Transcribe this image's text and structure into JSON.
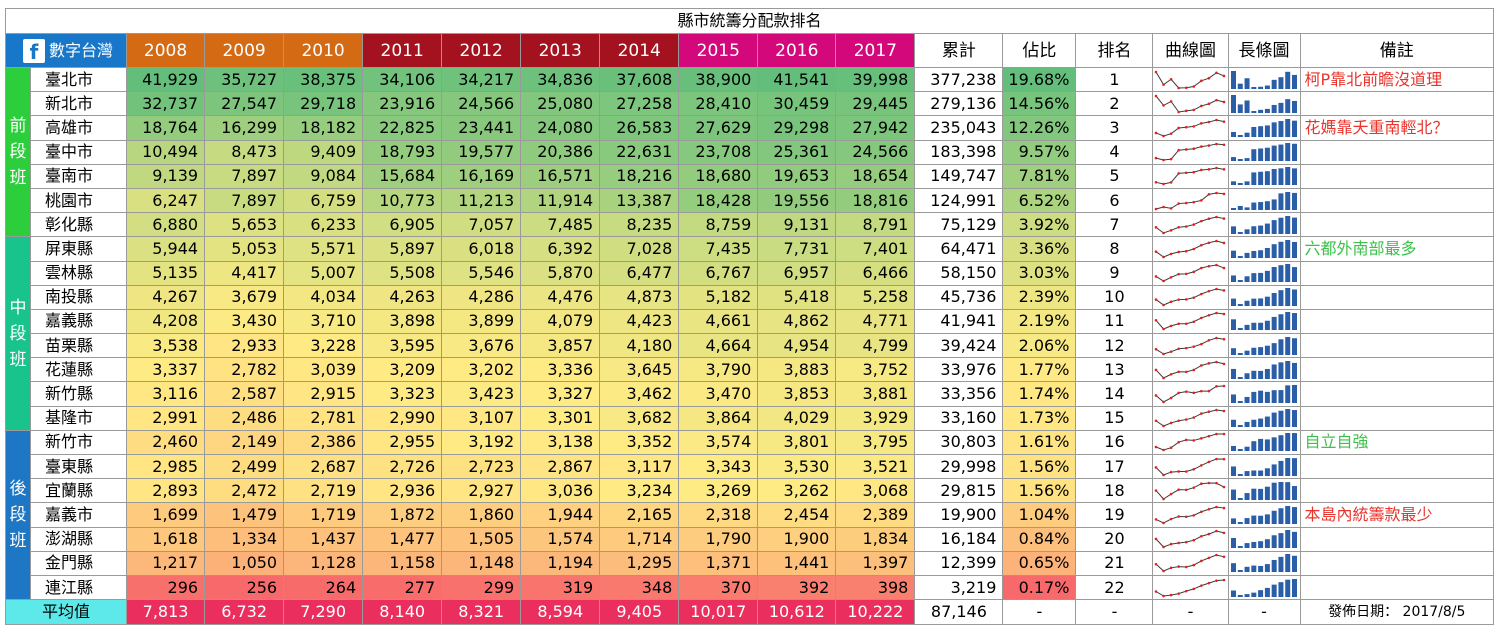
{
  "title": "縣市統籌分配款排名",
  "brand": {
    "icon": "facebook-icon",
    "glyph": "f",
    "label": "數字台灣"
  },
  "headers": {
    "years": [
      "2008",
      "2009",
      "2010",
      "2011",
      "2012",
      "2013",
      "2014",
      "2015",
      "2016",
      "2017"
    ],
    "total": "累計",
    "share": "佔比",
    "rank": "排名",
    "line": "曲線圖",
    "bar": "長條圖",
    "note": "備註"
  },
  "groups": [
    {
      "label": "前\n段\n班",
      "color": "#2ccf3b",
      "rows": 7
    },
    {
      "label": "中\n段\n班",
      "color": "#19c48c",
      "rows": 8
    },
    {
      "label": "後\n段\n班",
      "color": "#1d77c4",
      "rows": 7
    }
  ],
  "rows": [
    {
      "city": "臺北市",
      "values": [
        "41,929",
        "35,727",
        "38,375",
        "34,106",
        "34,217",
        "34,836",
        "37,608",
        "38,900",
        "41,541",
        "39,998"
      ],
      "total": "377,238",
      "share": "19.68%",
      "rank": "1",
      "note": "柯P靠北前瞻沒道理",
      "note_color": "#e8342c",
      "raw": [
        41929,
        35727,
        38375,
        34106,
        34217,
        34836,
        37608,
        38900,
        41541,
        39998
      ]
    },
    {
      "city": "新北市",
      "values": [
        "32,737",
        "27,547",
        "29,718",
        "23,916",
        "24,566",
        "25,080",
        "27,258",
        "28,410",
        "30,459",
        "29,445"
      ],
      "total": "279,136",
      "share": "14.56%",
      "rank": "2",
      "note": "",
      "note_color": "",
      "raw": [
        32737,
        27547,
        29718,
        23916,
        24566,
        25080,
        27258,
        28410,
        30459,
        29445
      ]
    },
    {
      "city": "高雄市",
      "values": [
        "18,764",
        "16,299",
        "18,182",
        "22,825",
        "23,441",
        "24,080",
        "26,583",
        "27,629",
        "29,298",
        "27,942"
      ],
      "total": "235,043",
      "share": "12.26%",
      "rank": "3",
      "note": "花媽靠夭重南輕北？",
      "note_color": "#e8342c",
      "raw": [
        18764,
        16299,
        18182,
        22825,
        23441,
        24080,
        26583,
        27629,
        29298,
        27942
      ]
    },
    {
      "city": "臺中市",
      "values": [
        "10,494",
        "8,473",
        "9,409",
        "18,793",
        "19,577",
        "20,386",
        "22,631",
        "23,708",
        "25,361",
        "24,566"
      ],
      "total": "183,398",
      "share": "9.57%",
      "rank": "4",
      "note": "",
      "note_color": "",
      "raw": [
        10494,
        8473,
        9409,
        18793,
        19577,
        20386,
        22631,
        23708,
        25361,
        24566
      ]
    },
    {
      "city": "臺南市",
      "values": [
        "9,139",
        "7,897",
        "9,084",
        "15,684",
        "16,169",
        "16,571",
        "18,216",
        "18,680",
        "19,653",
        "18,654"
      ],
      "total": "149,747",
      "share": "7.81%",
      "rank": "5",
      "note": "",
      "note_color": "",
      "raw": [
        9139,
        7897,
        9084,
        15684,
        16169,
        16571,
        18216,
        18680,
        19653,
        18654
      ]
    },
    {
      "city": "桃園市",
      "values": [
        "6,247",
        "7,897",
        "6,759",
        "10,773",
        "11,213",
        "11,914",
        "13,387",
        "18,428",
        "19,556",
        "18,816"
      ],
      "total": "124,991",
      "share": "6.52%",
      "rank": "6",
      "note": "",
      "note_color": "",
      "raw": [
        6247,
        7897,
        6759,
        10773,
        11213,
        11914,
        13387,
        18428,
        19556,
        18816
      ]
    },
    {
      "city": "彰化縣",
      "values": [
        "6,880",
        "5,653",
        "6,233",
        "6,905",
        "7,057",
        "7,485",
        "8,235",
        "8,759",
        "9,131",
        "8,791"
      ],
      "total": "75,129",
      "share": "3.92%",
      "rank": "7",
      "note": "",
      "note_color": "",
      "raw": [
        6880,
        5653,
        6233,
        6905,
        7057,
        7485,
        8235,
        8759,
        9131,
        8791
      ]
    },
    {
      "city": "屏東縣",
      "values": [
        "5,944",
        "5,053",
        "5,571",
        "5,897",
        "6,018",
        "6,392",
        "7,028",
        "7,435",
        "7,731",
        "7,401"
      ],
      "total": "64,471",
      "share": "3.36%",
      "rank": "8",
      "note": "六都外南部最多",
      "note_color": "#3cc24a",
      "raw": [
        5944,
        5053,
        5571,
        5897,
        6018,
        6392,
        7028,
        7435,
        7731,
        7401
      ]
    },
    {
      "city": "雲林縣",
      "values": [
        "5,135",
        "4,417",
        "5,007",
        "5,508",
        "5,546",
        "5,870",
        "6,477",
        "6,767",
        "6,957",
        "6,466"
      ],
      "total": "58,150",
      "share": "3.03%",
      "rank": "9",
      "note": "",
      "note_color": "",
      "raw": [
        5135,
        4417,
        5007,
        5508,
        5546,
        5870,
        6477,
        6767,
        6957,
        6466
      ]
    },
    {
      "city": "南投縣",
      "values": [
        "4,267",
        "3,679",
        "4,034",
        "4,263",
        "4,286",
        "4,476",
        "4,873",
        "5,182",
        "5,418",
        "5,258"
      ],
      "total": "45,736",
      "share": "2.39%",
      "rank": "10",
      "note": "",
      "note_color": "",
      "raw": [
        4267,
        3679,
        4034,
        4263,
        4286,
        4476,
        4873,
        5182,
        5418,
        5258
      ]
    },
    {
      "city": "嘉義縣",
      "values": [
        "4,208",
        "3,430",
        "3,710",
        "3,898",
        "3,899",
        "4,079",
        "4,423",
        "4,661",
        "4,862",
        "4,771"
      ],
      "total": "41,941",
      "share": "2.19%",
      "rank": "11",
      "note": "",
      "note_color": "",
      "raw": [
        4208,
        3430,
        3710,
        3898,
        3899,
        4079,
        4423,
        4661,
        4862,
        4771
      ]
    },
    {
      "city": "苗栗縣",
      "values": [
        "3,538",
        "2,933",
        "3,228",
        "3,595",
        "3,676",
        "3,857",
        "4,180",
        "4,664",
        "4,954",
        "4,799"
      ],
      "total": "39,424",
      "share": "2.06%",
      "rank": "12",
      "note": "",
      "note_color": "",
      "raw": [
        3538,
        2933,
        3228,
        3595,
        3676,
        3857,
        4180,
        4664,
        4954,
        4799
      ]
    },
    {
      "city": "花蓮縣",
      "values": [
        "3,337",
        "2,782",
        "3,039",
        "3,209",
        "3,202",
        "3,336",
        "3,645",
        "3,790",
        "3,883",
        "3,752"
      ],
      "total": "33,976",
      "share": "1.77%",
      "rank": "13",
      "note": "",
      "note_color": "",
      "raw": [
        3337,
        2782,
        3039,
        3209,
        3202,
        3336,
        3645,
        3790,
        3883,
        3752
      ]
    },
    {
      "city": "新竹縣",
      "values": [
        "3,116",
        "2,587",
        "2,915",
        "3,323",
        "3,423",
        "3,327",
        "3,462",
        "3,470",
        "3,853",
        "3,881"
      ],
      "total": "33,356",
      "share": "1.74%",
      "rank": "14",
      "note": "",
      "note_color": "",
      "raw": [
        3116,
        2587,
        2915,
        3323,
        3423,
        3327,
        3462,
        3470,
        3853,
        3881
      ]
    },
    {
      "city": "基隆市",
      "values": [
        "2,991",
        "2,486",
        "2,781",
        "2,990",
        "3,107",
        "3,301",
        "3,682",
        "3,864",
        "4,029",
        "3,929"
      ],
      "total": "33,160",
      "share": "1.73%",
      "rank": "15",
      "note": "",
      "note_color": "",
      "raw": [
        2991,
        2486,
        2781,
        2990,
        3107,
        3301,
        3682,
        3864,
        4029,
        3929
      ]
    },
    {
      "city": "新竹市",
      "values": [
        "2,460",
        "2,149",
        "2,386",
        "2,955",
        "3,192",
        "3,138",
        "3,352",
        "3,574",
        "3,801",
        "3,795"
      ],
      "total": "30,803",
      "share": "1.61%",
      "rank": "16",
      "note": "自立自強",
      "note_color": "#3cc24a",
      "raw": [
        2460,
        2149,
        2386,
        2955,
        3192,
        3138,
        3352,
        3574,
        3801,
        3795
      ]
    },
    {
      "city": "臺東縣",
      "values": [
        "2,985",
        "2,499",
        "2,687",
        "2,726",
        "2,723",
        "2,867",
        "3,117",
        "3,343",
        "3,530",
        "3,521"
      ],
      "total": "29,998",
      "share": "1.56%",
      "rank": "17",
      "note": "",
      "note_color": "",
      "raw": [
        2985,
        2499,
        2687,
        2726,
        2723,
        2867,
        3117,
        3343,
        3530,
        3521
      ]
    },
    {
      "city": "宜蘭縣",
      "values": [
        "2,893",
        "2,472",
        "2,719",
        "2,936",
        "2,927",
        "3,036",
        "3,234",
        "3,269",
        "3,262",
        "3,068"
      ],
      "total": "29,815",
      "share": "1.56%",
      "rank": "18",
      "note": "",
      "note_color": "",
      "raw": [
        2893,
        2472,
        2719,
        2936,
        2927,
        3036,
        3234,
        3269,
        3262,
        3068
      ]
    },
    {
      "city": "嘉義市",
      "values": [
        "1,699",
        "1,479",
        "1,719",
        "1,872",
        "1,860",
        "1,944",
        "2,165",
        "2,318",
        "2,454",
        "2,389"
      ],
      "total": "19,900",
      "share": "1.04%",
      "rank": "19",
      "note": "本島內統籌款最少",
      "note_color": "#e8342c",
      "raw": [
        1699,
        1479,
        1719,
        1872,
        1860,
        1944,
        2165,
        2318,
        2454,
        2389
      ]
    },
    {
      "city": "澎湖縣",
      "values": [
        "1,618",
        "1,334",
        "1,437",
        "1,477",
        "1,505",
        "1,574",
        "1,714",
        "1,790",
        "1,900",
        "1,834"
      ],
      "total": "16,184",
      "share": "0.84%",
      "rank": "20",
      "note": "",
      "note_color": "",
      "raw": [
        1618,
        1334,
        1437,
        1477,
        1505,
        1574,
        1714,
        1790,
        1900,
        1834
      ]
    },
    {
      "city": "金門縣",
      "values": [
        "1,217",
        "1,050",
        "1,128",
        "1,158",
        "1,148",
        "1,194",
        "1,295",
        "1,371",
        "1,441",
        "1,397"
      ],
      "total": "12,399",
      "share": "0.65%",
      "rank": "21",
      "note": "",
      "note_color": "",
      "raw": [
        1217,
        1050,
        1128,
        1158,
        1148,
        1194,
        1295,
        1371,
        1441,
        1397
      ]
    },
    {
      "city": "連江縣",
      "values": [
        "296",
        "256",
        "264",
        "277",
        "299",
        "319",
        "348",
        "370",
        "392",
        "398"
      ],
      "total": "3,219",
      "share": "0.17%",
      "rank": "22",
      "note": "",
      "note_color": "",
      "raw": [
        296,
        256,
        264,
        277,
        299,
        319,
        348,
        370,
        392,
        398
      ]
    }
  ],
  "average": {
    "label": "平均值",
    "values": [
      "7,813",
      "6,732",
      "7,290",
      "8,140",
      "8,321",
      "8,594",
      "9,405",
      "10,017",
      "10,612",
      "10,222"
    ],
    "total": "87,146",
    "share": "-",
    "rank": "-",
    "line": "-",
    "bar": "-",
    "note": "發佈日期： 2017/8/5"
  },
  "colors": {
    "header_orange": "#d46a14",
    "header_darkred": "#a3121e",
    "header_magenta": "#d3087a",
    "avg_label": "#5de9e9",
    "avg_values": "#ea2f5f",
    "spark_line": "#3a3a3a",
    "spark_marker": "#e32020",
    "bar_fill": "#2a5fa8"
  }
}
